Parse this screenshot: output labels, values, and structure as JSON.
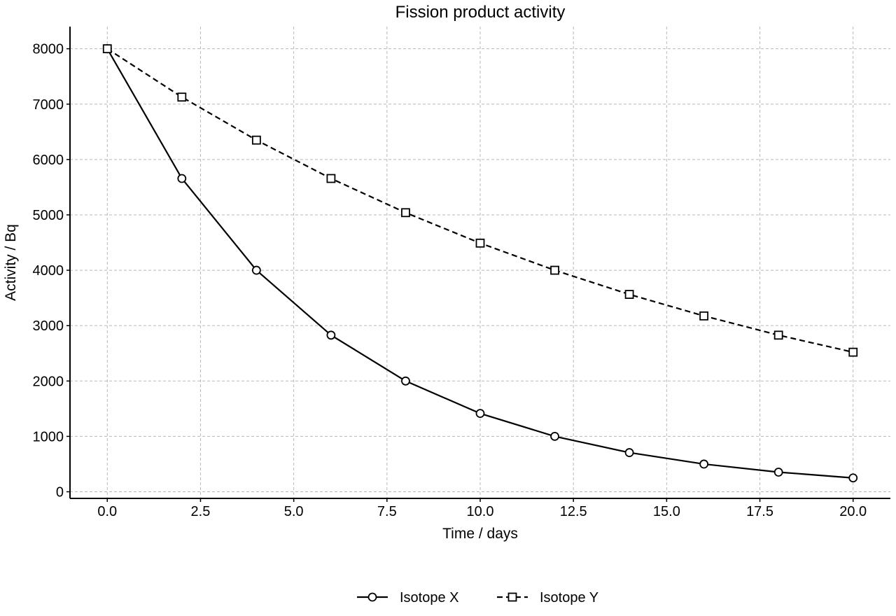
{
  "chart_data": {
    "type": "line",
    "title": "Fission product activity",
    "xlabel": "Time / days",
    "ylabel": "Activity / Bq",
    "xlim": [
      -1,
      21
    ],
    "ylim": [
      -120,
      8400
    ],
    "xticks": [
      0,
      2.5,
      5,
      7.5,
      10,
      12.5,
      15,
      17.5,
      20
    ],
    "xtick_labels": [
      "0.0",
      "2.5",
      "5.0",
      "7.5",
      "10.0",
      "12.5",
      "15.0",
      "17.5",
      "20.0"
    ],
    "yticks": [
      0,
      1000,
      2000,
      3000,
      4000,
      5000,
      6000,
      7000,
      8000
    ],
    "ytick_labels": [
      "0",
      "1000",
      "2000",
      "3000",
      "4000",
      "5000",
      "6000",
      "7000",
      "8000"
    ],
    "grid": true,
    "legend_position": "bottom-center",
    "x": [
      0,
      2,
      4,
      6,
      8,
      10,
      12,
      14,
      16,
      18,
      20
    ],
    "series": [
      {
        "name": "Isotope X",
        "values": [
          8000,
          5657,
          4000,
          2828,
          2000,
          1414,
          1000,
          707,
          500,
          354,
          250
        ],
        "line_style": "solid",
        "marker": "circle",
        "color": "#000000"
      },
      {
        "name": "Isotope Y",
        "values": [
          8000,
          7127,
          6350,
          5657,
          5040,
          4490,
          4000,
          3564,
          3175,
          2828,
          2520
        ],
        "line_style": "dashed",
        "marker": "square",
        "color": "#000000"
      }
    ]
  }
}
